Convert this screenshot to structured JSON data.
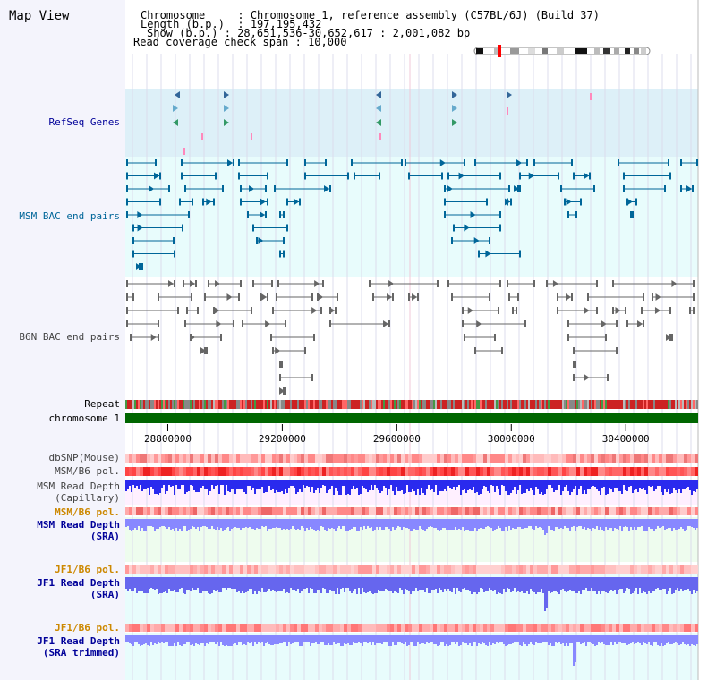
{
  "page": {
    "title": "Map View"
  },
  "header": {
    "lines": [
      {
        "key": "Chromosome",
        "value": "Chromosome 1, reference assembly (C57BL/6J) (Build 37)"
      },
      {
        "key": "Length (b.p.)",
        "value": "197,195,432"
      },
      {
        "key": "Show (b.p.)",
        "value": "28,651,536-30,652,617 : 2,001,082 bp"
      },
      {
        "key": "Read coverage check span",
        "value": "10,000"
      }
    ]
  },
  "tracks": {
    "refseq": "RefSeq Genes",
    "msm_bac": "MSM BAC end pairs",
    "b6n_bac": "B6N BAC end pairs",
    "repeat": "Repeat",
    "chromosome": "chromosome 1",
    "dbsnp": "dbSNP(Mouse)",
    "msm_pol": "MSM/B6 pol.",
    "msm_depth_cap_1": "MSM Read Depth",
    "msm_depth_cap_2": "(Capillary)",
    "msm_pol_sra": "MSM/B6 pol.",
    "msm_depth_sra_1": "MSM Read Depth",
    "msm_depth_sra_2": "(SRA)",
    "jf1_pol_1": "JF1/B6 pol.",
    "jf1_depth_1": "JF1 Read Depth",
    "jf1_depth_1b": "(SRA)",
    "jf1_pol_2": "JF1/B6 pol.",
    "jf1_depth_2": "JF1 Read Depth",
    "jf1_depth_2b": "(SRA trimmed)"
  },
  "axis": {
    "tick_labels": [
      "28800000",
      "29200000",
      "29600000",
      "30000000",
      "30400000"
    ],
    "ticks": [
      28800000,
      29200000,
      29600000,
      30000000,
      30400000
    ],
    "start_bp": 28651536,
    "end_bp": 30652617
  },
  "colors": {
    "label_navy": "#000099",
    "label_teal": "#006699",
    "label_gray": "#444444",
    "label_orange": "#cc8800",
    "refseq_bg": "#ddf0f8",
    "msm_bg": "#e8fcfc",
    "b6n_bg": "#ffffff",
    "depth_blue": "#2a2aee",
    "depth_light": "#8888ff",
    "chrom_green": "#006600"
  }
}
